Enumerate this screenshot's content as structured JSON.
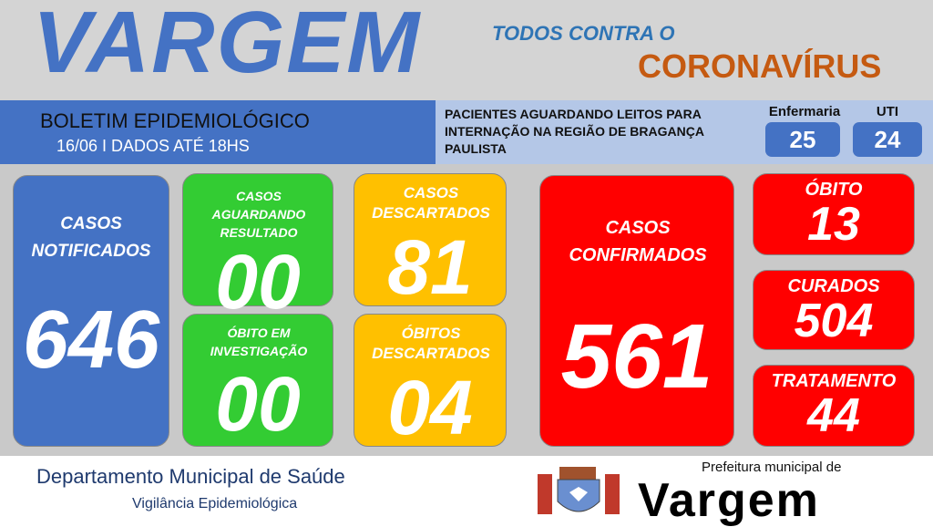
{
  "header": {
    "title": "VARGEM",
    "tagline1": "TODOS CONTRA O",
    "tagline2": "CORONAVÍRUS"
  },
  "bulletin": {
    "title": "BOLETIM EPIDEMIOLÓGICO",
    "date": "16/06 I DADOS ATÉ 18HS"
  },
  "beds": {
    "text": "PACIENTES AGUARDANDO LEITOS PARA INTERNAÇÃO NA REGIÃO DE BRAGANÇA PAULISTA",
    "ward_label": "Enfermaria",
    "ward_value": "25",
    "icu_label": "UTI",
    "icu_value": "24"
  },
  "cards": {
    "notified": {
      "label": "CASOS NOTIFICADOS",
      "value": "646"
    },
    "awaiting": {
      "label": "CASOS AGUARDANDO RESULTADO",
      "value": "00"
    },
    "death_investigation": {
      "label": "ÓBITO EM INVESTIGAÇÃO",
      "value": "00"
    },
    "discarded": {
      "label": "CASOS DESCARTADOS",
      "value": "81"
    },
    "deaths_discarded": {
      "label": "ÓBITOS DESCARTADOS",
      "value": "04"
    },
    "confirmed": {
      "label": "CASOS CONFIRMADOS",
      "value": "561"
    },
    "deaths": {
      "label": "ÓBITO",
      "value": "13"
    },
    "cured": {
      "label": "CURADOS",
      "value": "504"
    },
    "treatment": {
      "label": "TRATAMENTO",
      "value": "44"
    }
  },
  "footer": {
    "dept": "Departamento Municipal de Saúde",
    "unit": "Vigilância Epidemiológica",
    "logo_small": "Prefeitura municipal de",
    "logo_big": "Vargem"
  },
  "colors": {
    "blue": "#4472c4",
    "green": "#33cc33",
    "yellow": "#ffc000",
    "red": "#ff0000",
    "orange": "#c55a11"
  }
}
